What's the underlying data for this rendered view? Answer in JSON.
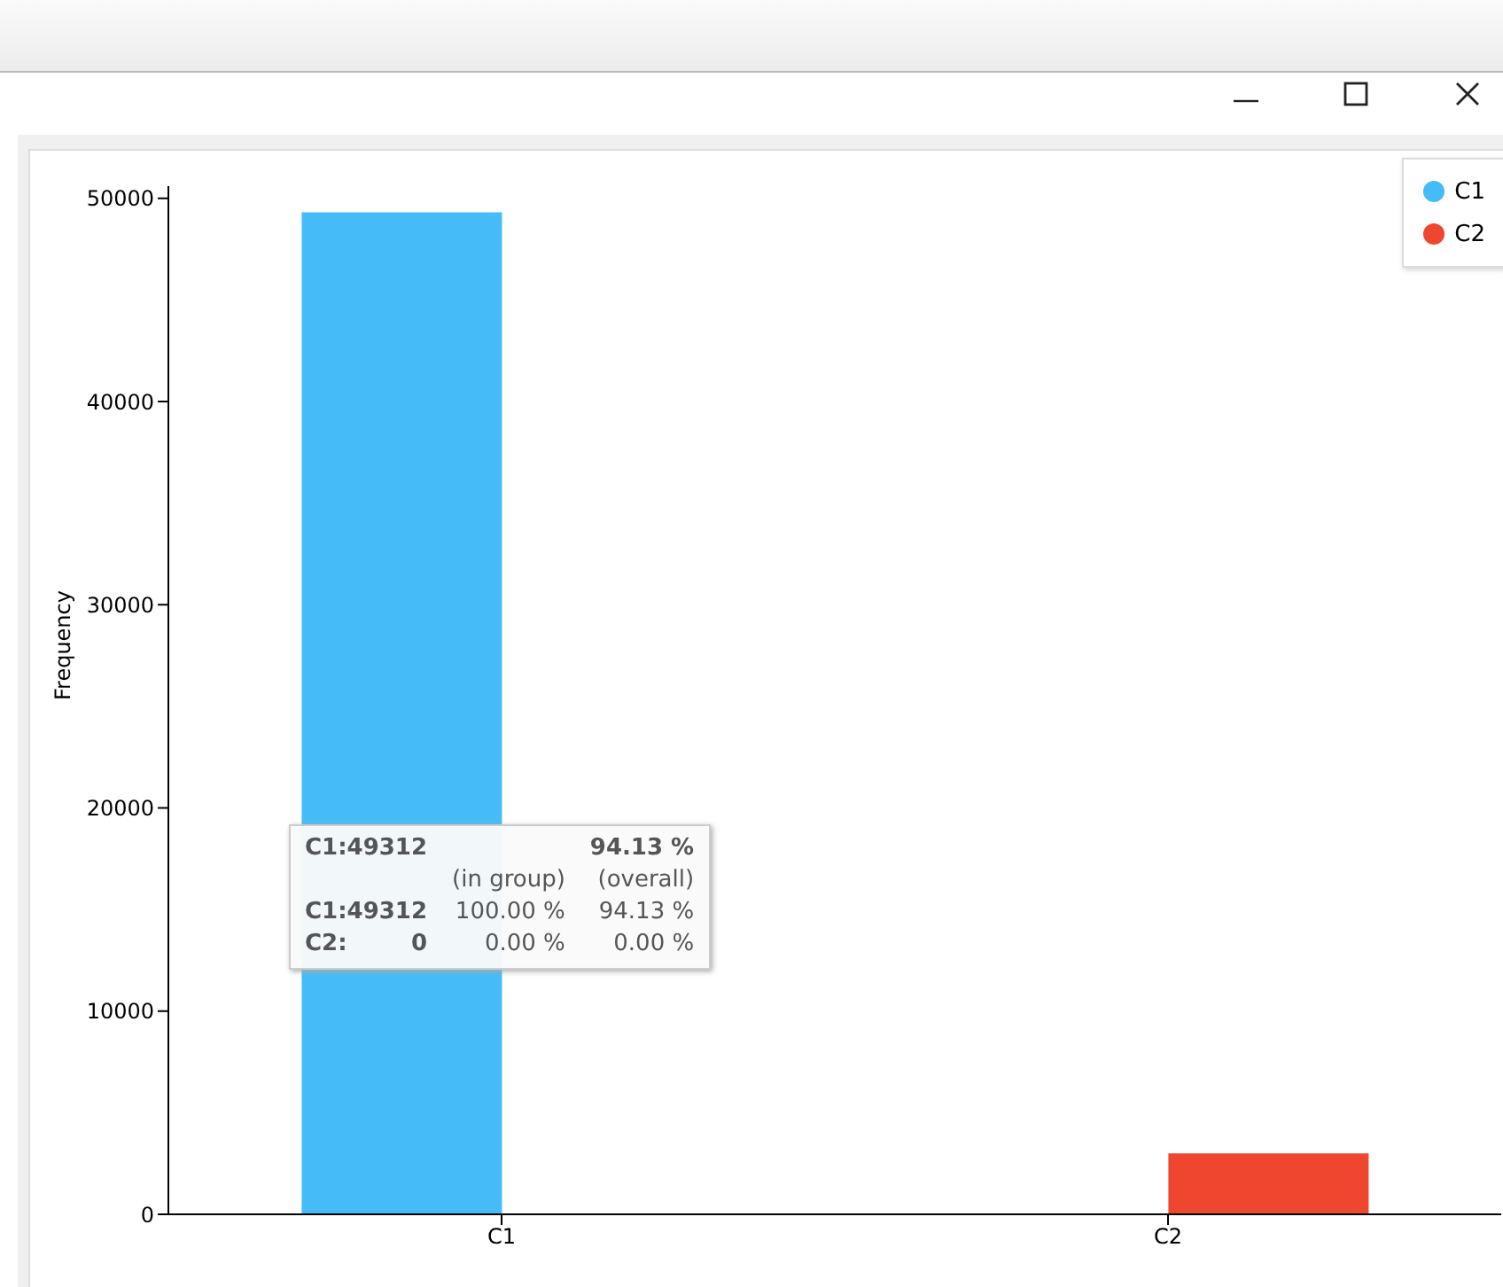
{
  "chart_data": {
    "type": "bar",
    "ylabel": "Frequency",
    "categories": [
      "C1",
      "C2"
    ],
    "series": [
      {
        "name": "C1",
        "color": "#45bbf8",
        "values": [
          49312,
          0
        ]
      },
      {
        "name": "C2",
        "color": "#ef472f",
        "values": [
          0,
          3000
        ]
      }
    ],
    "ylim": [
      0,
      50600
    ],
    "yticks": [
      0,
      10000,
      20000,
      30000,
      40000,
      50000
    ],
    "legend": "top right",
    "annotations": [
      "C1:49312",
      "94.13 %",
      "(in group)",
      "(overall)",
      "C1:49312",
      "100.00 %",
      "94.13 %",
      "C2:",
      "0",
      "0.00 %",
      "0.00 %"
    ]
  }
}
